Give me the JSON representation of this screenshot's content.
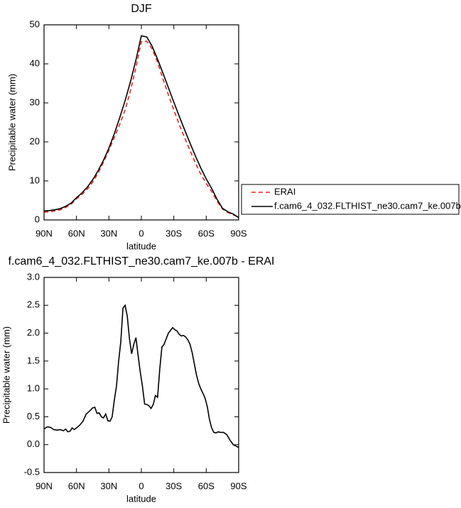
{
  "chart_data": [
    {
      "type": "line",
      "title": "DJF",
      "xlabel": "latitude",
      "ylabel": "Precipitable water (mm)",
      "x": [
        90,
        85,
        80,
        75,
        70,
        65,
        60,
        55,
        50,
        45,
        40,
        35,
        30,
        25,
        20,
        15,
        10,
        5,
        0,
        -5,
        -10,
        -15,
        -20,
        -25,
        -30,
        -35,
        -40,
        -45,
        -50,
        -55,
        -60,
        -65,
        -70,
        -75,
        -80,
        -85,
        -90
      ],
      "series": [
        {
          "name": "ERAI",
          "color": "#e8231f",
          "style": "dashed",
          "values": [
            2.0,
            2.1,
            2.3,
            2.6,
            3.2,
            4.0,
            5.4,
            6.5,
            7.9,
            9.7,
            12.0,
            14.8,
            17.9,
            21.1,
            24.5,
            28.2,
            33.2,
            39.1,
            45.7,
            45.8,
            43.8,
            40.4,
            36.1,
            32.1,
            28.2,
            24.5,
            21.1,
            17.8,
            14.6,
            11.7,
            9.4,
            7.3,
            4.8,
            2.8,
            1.9,
            1.3,
            0.7
          ]
        },
        {
          "name": "f.cam6_4_032.FLTHIST_ne30.cam7_ke.007b",
          "color": "#000000",
          "style": "solid",
          "values": [
            2.3,
            2.4,
            2.6,
            2.9,
            3.5,
            4.3,
            5.7,
            6.9,
            8.4,
            10.3,
            12.6,
            15.3,
            18.4,
            22.1,
            26.2,
            30.6,
            35.5,
            41,
            47.2,
            46.9,
            44.5,
            41.2,
            37.6,
            33.9,
            30.2,
            26.6,
            23.1,
            19.7,
            16.4,
            13.3,
            10.5,
            8.1,
            5.3,
            3.0,
            2.1,
            1.5,
            0.6
          ]
        }
      ],
      "xlim": [
        90,
        -90
      ],
      "xticks": [
        {
          "value": 90,
          "label": "90N"
        },
        {
          "value": 60,
          "label": "60N"
        },
        {
          "value": 30,
          "label": "30N"
        },
        0,
        {
          "value": -30,
          "label": "30S"
        },
        {
          "value": -60,
          "label": "60S"
        },
        {
          "value": -90,
          "label": "90S"
        }
      ],
      "ylim": [
        0,
        50
      ],
      "yticks": [
        0,
        10,
        20,
        30,
        40,
        50
      ],
      "grid": false,
      "legend": "right"
    },
    {
      "type": "line",
      "title": "f.cam6_4_032.FLTHIST_ne30.cam7_ke.007b - ERAI",
      "xlabel": "latitude",
      "ylabel": "Precipitable water (mm)",
      "x": [
        90,
        87,
        84,
        81,
        78,
        75,
        72,
        70,
        68,
        66,
        64,
        62,
        60,
        57,
        54,
        51,
        48,
        45,
        43,
        41,
        39,
        37,
        35,
        33,
        31,
        29,
        27,
        25,
        23,
        21,
        19,
        17,
        15,
        13,
        11,
        9,
        7,
        5,
        3,
        1,
        -1,
        -3,
        -5,
        -7,
        -9,
        -11,
        -13,
        -15,
        -17,
        -19,
        -21,
        -23,
        -25,
        -27,
        -29,
        -31,
        -33,
        -35,
        -37,
        -39,
        -41,
        -43,
        -45,
        -47,
        -49,
        -51,
        -53,
        -55,
        -57,
        -59,
        -61,
        -63,
        -65,
        -67,
        -69,
        -71,
        -73,
        -76,
        -79,
        -82,
        -85,
        -88,
        -90
      ],
      "values": [
        0.28,
        0.32,
        0.31,
        0.27,
        0.26,
        0.27,
        0.25,
        0.28,
        0.23,
        0.24,
        0.3,
        0.27,
        0.3,
        0.35,
        0.42,
        0.55,
        0.6,
        0.66,
        0.67,
        0.56,
        0.57,
        0.5,
        0.48,
        0.55,
        0.43,
        0.42,
        0.5,
        0.8,
        1.05,
        1.5,
        1.85,
        2.45,
        2.5,
        2.3,
        1.9,
        1.63,
        1.8,
        1.92,
        1.6,
        1.3,
        1.05,
        0.73,
        0.72,
        0.7,
        0.65,
        0.72,
        0.88,
        0.85,
        1.35,
        1.75,
        1.8,
        1.9,
        2.0,
        2.05,
        2.1,
        2.06,
        2.04,
        1.98,
        1.95,
        1.96,
        1.93,
        1.88,
        1.8,
        1.65,
        1.45,
        1.25,
        1.1,
        1.0,
        0.92,
        0.83,
        0.68,
        0.45,
        0.3,
        0.22,
        0.21,
        0.23,
        0.22,
        0.22,
        0.18,
        0.08,
        0.0,
        -0.03,
        -0.05
      ],
      "color": "#000000",
      "xlim": [
        90,
        -90
      ],
      "xticks": [
        {
          "value": 90,
          "label": "90N"
        },
        {
          "value": 60,
          "label": "60N"
        },
        {
          "value": 30,
          "label": "30N"
        },
        0,
        {
          "value": -30,
          "label": "30S"
        },
        {
          "value": -60,
          "label": "60S"
        },
        {
          "value": -90,
          "label": "90S"
        }
      ],
      "ylim": [
        -0.5,
        3
      ],
      "yticks": [
        -0.5,
        {
          "value": 0,
          "label": "0.0"
        },
        0.5,
        {
          "value": 1,
          "label": "1.0"
        },
        1.5,
        {
          "value": 2,
          "label": "2.0"
        },
        2.5,
        {
          "value": 3,
          "label": "3.0"
        }
      ],
      "grid": false
    }
  ]
}
